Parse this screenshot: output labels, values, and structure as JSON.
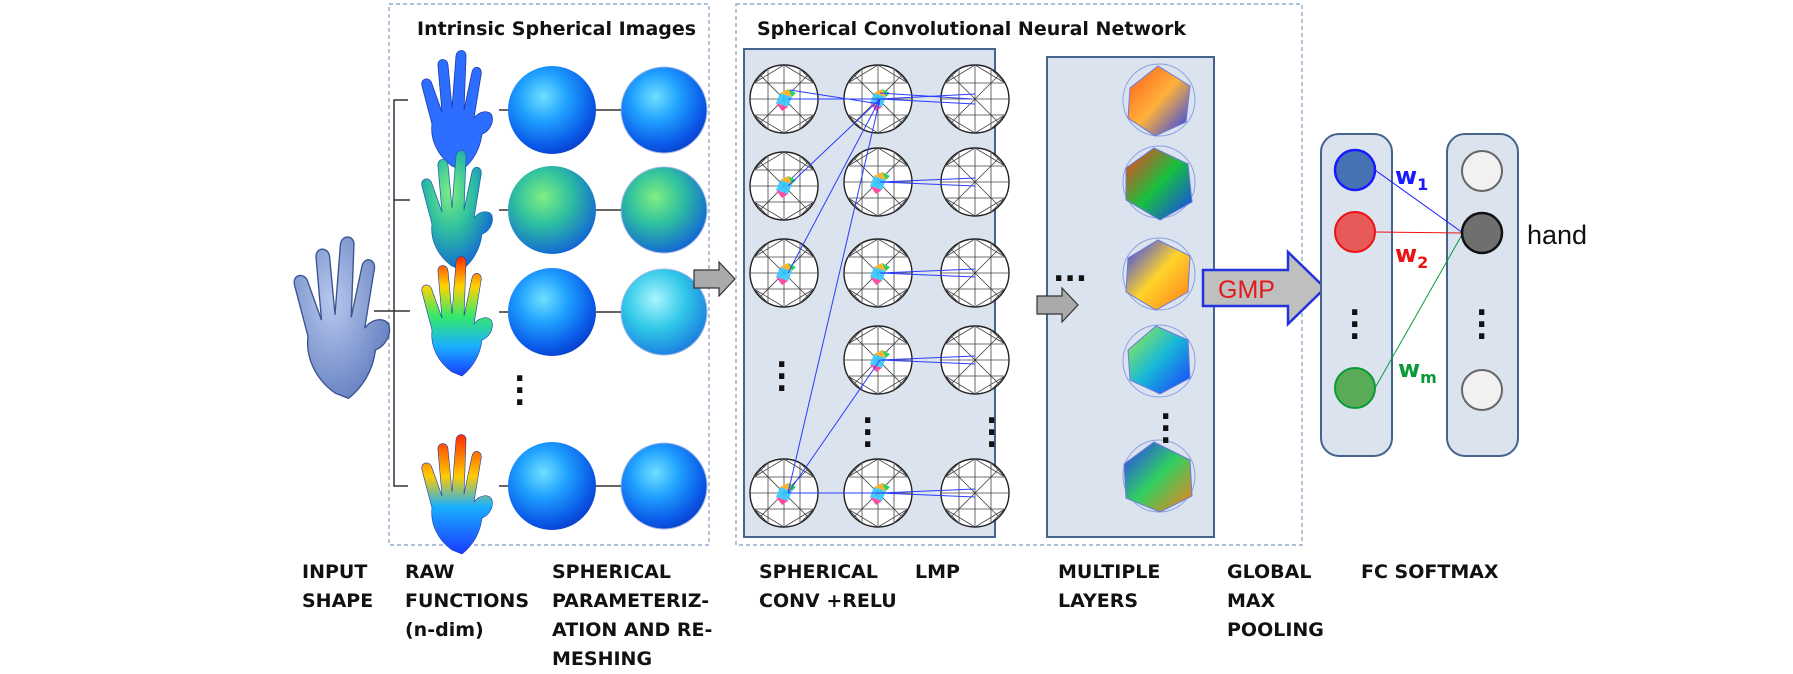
{
  "titles": {
    "intrinsic": "Intrinsic Spherical Images",
    "scnn": "Spherical Convolutional Neural Network"
  },
  "labels": {
    "input_shape": "INPUT\nSHAPE",
    "raw_functions": "RAW\nFUNCTIONS\n(n-dim)",
    "spherical_param": "SPHERICAL\nPARAMETERIZ-\nATION AND RE-\nMESHING",
    "spherical_conv": "SPHERICAL\nCONV +RELU",
    "lmp": "LMP",
    "multiple_layers": "MULTIPLE\nLAYERS",
    "gmp_label": "GLOBAL\nMAX\nPOOLING",
    "fc_softmax": "FC SOFTMAX"
  },
  "gmp_arrow": "GMP",
  "output_class": "hand",
  "weights": [
    {
      "base": "w",
      "sub": "1",
      "color": "#1a1aff"
    },
    {
      "base": "w",
      "sub": "2",
      "color": "#ee1111"
    },
    {
      "base": "w",
      "sub": "m",
      "color": "#0a9a3a"
    }
  ],
  "colors": {
    "panel_fill": "#dbe3ef",
    "panel_stroke": "#44648e",
    "dashed_border": "#7f9cc4",
    "mesh_blue": "#7d96c8",
    "fc_blue": "#4672b5",
    "fc_red": "#e85a5a",
    "fc_green": "#5aab58",
    "out_dark": "#6f6f6f",
    "gmp_arrow_fill": "#bfbfbf",
    "gmp_arrow_stroke": "#2233dd"
  }
}
